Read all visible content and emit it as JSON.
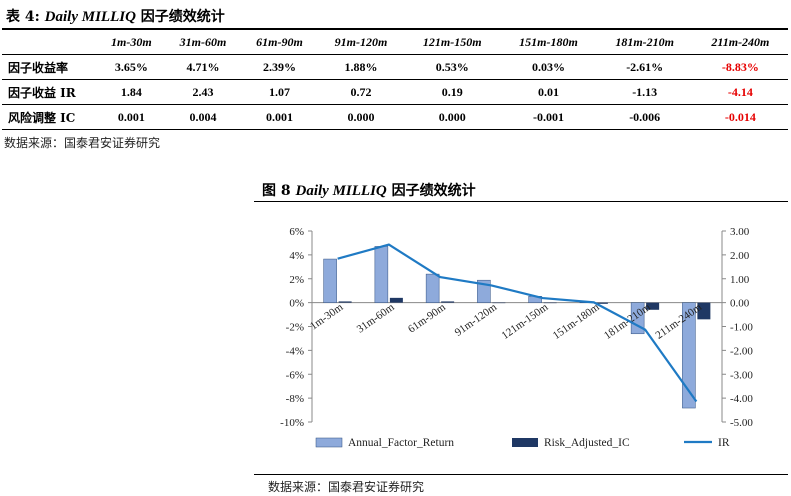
{
  "table": {
    "title_prefix": "表 4:",
    "title_italic": "Daily MILLIQ",
    "title_suffix": "因子绩效统计",
    "columns": [
      "1m-30m",
      "31m-60m",
      "61m-90m",
      "91m-120m",
      "121m-150m",
      "151m-180m",
      "181m-210m",
      "211m-240m"
    ],
    "rows": [
      {
        "label": "因子收益率",
        "values": [
          "3.65%",
          "4.71%",
          "2.39%",
          "1.88%",
          "0.53%",
          "0.03%",
          "-2.61%",
          "-8.83%"
        ]
      },
      {
        "label": "因子收益 IR",
        "values": [
          "1.84",
          "2.43",
          "1.07",
          "0.72",
          "0.19",
          "0.01",
          "-1.13",
          "-4.14"
        ]
      },
      {
        "label": "风险调整 IC",
        "values": [
          "0.001",
          "0.004",
          "0.001",
          "0.000",
          "0.000",
          "-0.001",
          "-0.006",
          "-0.014"
        ]
      }
    ],
    "highlight_color": "#e60000",
    "source": "数据来源：国泰君安证券研究"
  },
  "figure": {
    "title_prefix": "图 8",
    "title_italic": "Daily MILLIQ",
    "title_suffix": "因子绩效统计",
    "source": "数据来源：国泰君安证券研究"
  },
  "chart_data": {
    "type": "bar",
    "categories": [
      "1m-30m",
      "31m-60m",
      "61m-90m",
      "91m-120m",
      "121m-150m",
      "151m-180m",
      "181m-210m",
      "211m-240m"
    ],
    "series": [
      {
        "name": "Annual_Factor_Return",
        "type": "bar",
        "axis": "left",
        "color": "#8eaadb",
        "values": [
          3.65,
          4.71,
          2.39,
          1.88,
          0.53,
          0.03,
          -2.61,
          -8.83
        ]
      },
      {
        "name": "Risk_Adjusted_IC",
        "type": "bar",
        "axis": "left",
        "color": "#1f3864",
        "values": [
          0.1,
          0.4,
          0.1,
          0.0,
          0.0,
          -0.1,
          -0.6,
          -1.4
        ]
      },
      {
        "name": "IR",
        "type": "line",
        "axis": "right",
        "color": "#1f7ac4",
        "values": [
          1.84,
          2.43,
          1.07,
          0.72,
          0.19,
          0.01,
          -1.13,
          -4.14
        ]
      }
    ],
    "left_axis": {
      "ylim": [
        -10,
        6
      ],
      "ticks": [
        "-10%",
        "-8%",
        "-6%",
        "-4%",
        "-2%",
        "0%",
        "2%",
        "4%",
        "6%"
      ]
    },
    "right_axis": {
      "ylim": [
        -5,
        3
      ],
      "ticks": [
        "-5.00",
        "-4.00",
        "-3.00",
        "-2.00",
        "-1.00",
        "0.00",
        "1.00",
        "2.00",
        "3.00"
      ]
    },
    "legend_position": "bottom",
    "grid": false
  }
}
